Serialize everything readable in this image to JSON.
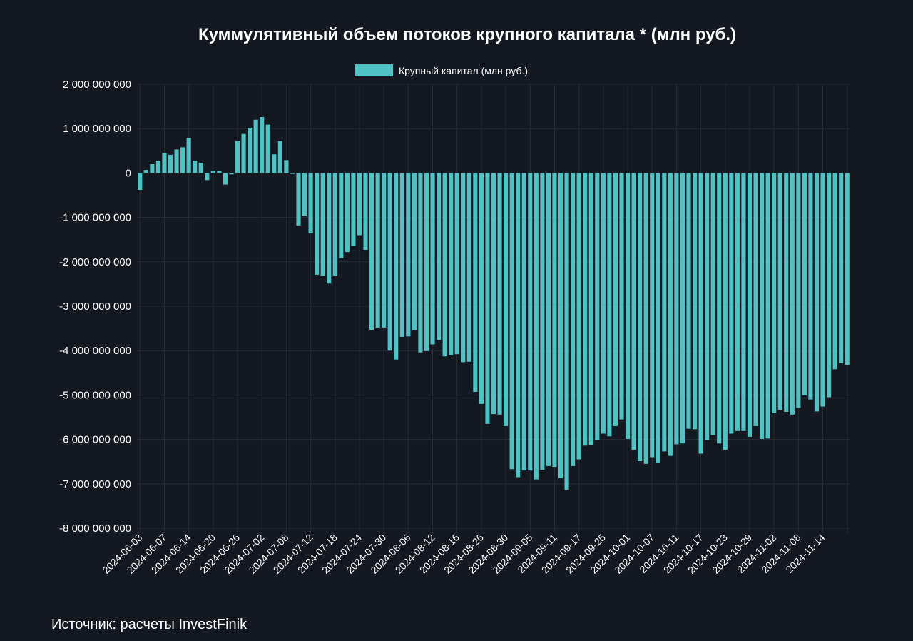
{
  "chart_data": {
    "type": "bar",
    "title": "Куммулятивный объем потоков крупного капитала * (млн руб.)",
    "legend": {
      "placement": "top-center"
    },
    "series": [
      {
        "name": "Крупный капитал (млн руб.)",
        "color": "#4fc3c3",
        "values": [
          -380000000,
          70000000,
          200000000,
          280000000,
          450000000,
          410000000,
          530000000,
          580000000,
          790000000,
          280000000,
          230000000,
          -160000000,
          50000000,
          40000000,
          -260000000,
          -30000000,
          720000000,
          880000000,
          1020000000,
          1200000000,
          1260000000,
          1090000000,
          420000000,
          720000000,
          290000000,
          -20000000,
          -1180000000,
          -960000000,
          -1360000000,
          -2290000000,
          -2310000000,
          -2490000000,
          -2310000000,
          -1920000000,
          -1780000000,
          -1640000000,
          -1400000000,
          -1730000000,
          -3530000000,
          -3480000000,
          -3480000000,
          -4000000000,
          -4200000000,
          -3690000000,
          -3680000000,
          -3540000000,
          -4040000000,
          -4010000000,
          -3860000000,
          -3760000000,
          -4130000000,
          -4110000000,
          -4080000000,
          -4260000000,
          -4250000000,
          -4930000000,
          -5200000000,
          -5650000000,
          -5430000000,
          -5440000000,
          -5700000000,
          -6670000000,
          -6850000000,
          -6700000000,
          -6700000000,
          -6900000000,
          -6680000000,
          -6600000000,
          -6620000000,
          -6870000000,
          -7130000000,
          -6600000000,
          -6450000000,
          -6140000000,
          -6120000000,
          -6010000000,
          -5870000000,
          -5930000000,
          -5700000000,
          -5550000000,
          -5990000000,
          -6230000000,
          -6490000000,
          -6550000000,
          -6400000000,
          -6520000000,
          -6270000000,
          -6370000000,
          -6110000000,
          -6090000000,
          -5760000000,
          -5770000000,
          -6320000000,
          -6010000000,
          -5900000000,
          -6090000000,
          -6230000000,
          -5870000000,
          -5810000000,
          -5810000000,
          -5940000000,
          -5700000000,
          -5990000000,
          -5980000000,
          -5410000000,
          -5330000000,
          -5380000000,
          -5440000000,
          -5290000000,
          -5010000000,
          -5100000000,
          -5370000000,
          -5260000000,
          -5050000000,
          -4420000000,
          -4280000000,
          -4320000000
        ]
      }
    ],
    "x_tick_labels": [
      "2024-06-03",
      "2024-06-07",
      "2024-06-14",
      "2024-06-20",
      "2024-06-26",
      "2024-07-02",
      "2024-07-08",
      "2024-07-12",
      "2024-07-18",
      "2024-07-24",
      "2024-07-30",
      "2024-08-06",
      "2024-08-12",
      "2024-08-16",
      "2024-08-26",
      "2024-08-30",
      "2024-09-05",
      "2024-09-11",
      "2024-09-17",
      "2024-09-25",
      "2024-10-01",
      "2024-10-07",
      "2024-10-11",
      "2024-10-17",
      "2024-10-23",
      "2024-10-29",
      "2024-11-02",
      "2024-11-08",
      "2024-11-14"
    ],
    "x_tick_every": 4,
    "ylim": [
      -8000000000,
      2000000000
    ],
    "y_ticks": [
      2000000000,
      1000000000,
      0,
      -1000000000,
      -2000000000,
      -3000000000,
      -4000000000,
      -5000000000,
      -6000000000,
      -7000000000,
      -8000000000
    ],
    "y_tick_labels": [
      "2 000 000 000",
      "1 000 000 000",
      "0",
      "-1 000 000 000",
      "-2 000 000 000",
      "-3 000 000 000",
      "-4 000 000 000",
      "-5 000 000 000",
      "-6 000 000 000",
      "-7 000 000 000",
      "-8 000 000 000"
    ],
    "grid": true,
    "grid_color": "#262c36",
    "background": "#131821"
  },
  "footer": {
    "source": "Источник: расчеты InvestFinik"
  }
}
